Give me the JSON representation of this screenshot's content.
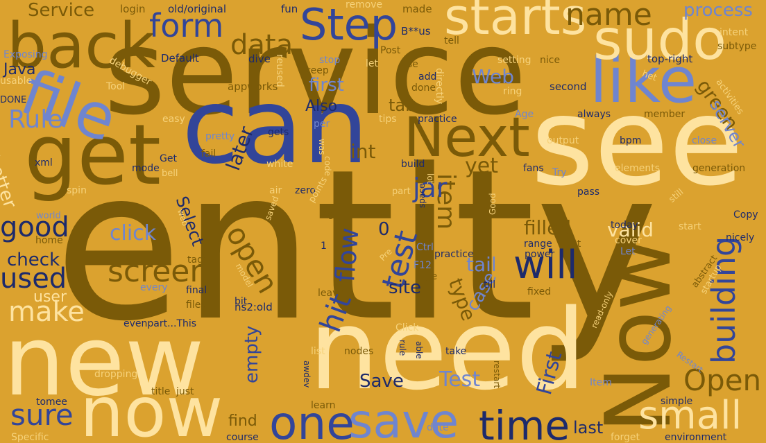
{
  "palette": {
    "background": "#dba22f",
    "brown": "#7a5a08",
    "cream": "#fee3a0",
    "royal_blue": "#324599",
    "periwinkle": "#6f85cf",
    "navy": "#1d2a6b",
    "pale_yellow": "#f6d27a"
  },
  "words": [
    {
      "text": "entity",
      "color": "brown"
    },
    {
      "text": "service",
      "color": "brown"
    },
    {
      "text": "can",
      "color": "royal_blue"
    },
    {
      "text": "see",
      "color": "cream"
    },
    {
      "text": "new",
      "color": "cream"
    },
    {
      "text": "need",
      "color": "cream"
    },
    {
      "text": "now",
      "color": "cream"
    },
    {
      "text": "get",
      "color": "brown"
    },
    {
      "text": "Now",
      "color": "brown"
    },
    {
      "text": "file",
      "color": "periwinkle"
    },
    {
      "text": "like",
      "color": "periwinkle"
    },
    {
      "text": "back",
      "color": "brown"
    },
    {
      "text": "sudo",
      "color": "cream"
    },
    {
      "text": "starts",
      "color": "cream"
    },
    {
      "text": "Next",
      "color": "brown"
    },
    {
      "text": "Step",
      "color": "royal_blue"
    },
    {
      "text": "name",
      "color": "brown"
    },
    {
      "text": "form",
      "color": "royal_blue"
    },
    {
      "text": "data",
      "color": "brown"
    },
    {
      "text": "save",
      "color": "periwinkle"
    },
    {
      "text": "one",
      "color": "royal_blue"
    },
    {
      "text": "time",
      "color": "navy"
    },
    {
      "text": "small",
      "color": "cream"
    },
    {
      "text": "will",
      "color": "navy"
    },
    {
      "text": "building",
      "color": "royal_blue"
    },
    {
      "text": "good",
      "color": "navy"
    },
    {
      "text": "used",
      "color": "navy"
    },
    {
      "text": "screen",
      "color": "brown"
    },
    {
      "text": "make",
      "color": "cream"
    },
    {
      "text": "sure",
      "color": "royal_blue"
    },
    {
      "text": "Open",
      "color": "brown"
    },
    {
      "text": "open",
      "color": "brown"
    },
    {
      "text": "test",
      "color": "royal_blue"
    },
    {
      "text": "flow",
      "color": "royal_blue"
    },
    {
      "text": "item",
      "color": "brown"
    },
    {
      "text": "hit",
      "color": "royal_blue"
    },
    {
      "text": "jar",
      "color": "royal_blue"
    },
    {
      "text": "Rule",
      "color": "periwinkle"
    },
    {
      "text": "process",
      "color": "periwinkle"
    },
    {
      "text": "Service",
      "color": "brown"
    },
    {
      "text": "green",
      "color": "brown"
    },
    {
      "text": "server",
      "color": "periwinkle"
    },
    {
      "text": "click",
      "color": "periwinkle"
    },
    {
      "text": "check",
      "color": "navy"
    },
    {
      "text": "Save",
      "color": "navy"
    },
    {
      "text": "Test",
      "color": "periwinkle"
    },
    {
      "text": "First",
      "color": "royal_blue"
    },
    {
      "text": "yet",
      "color": "brown"
    },
    {
      "text": "valid",
      "color": "cream"
    },
    {
      "text": "filled",
      "color": "brown"
    },
    {
      "text": "tail",
      "color": "periwinkle"
    },
    {
      "text": "type",
      "color": "brown"
    },
    {
      "text": "case",
      "color": "periwinkle"
    },
    {
      "text": "site",
      "color": "navy"
    },
    {
      "text": "empty",
      "color": "royal_blue"
    },
    {
      "text": "Web",
      "color": "periwinkle"
    },
    {
      "text": "first",
      "color": "periwinkle"
    },
    {
      "text": "tab",
      "color": "brown"
    },
    {
      "text": "int",
      "color": "brown"
    },
    {
      "text": "later",
      "color": "navy"
    },
    {
      "text": "Also",
      "color": "navy"
    },
    {
      "text": "Select",
      "color": "navy"
    },
    {
      "text": "better",
      "color": "cream"
    },
    {
      "text": "user",
      "color": "cream"
    },
    {
      "text": "Java",
      "color": "navy"
    },
    {
      "text": "last",
      "color": "navy"
    },
    {
      "text": "find",
      "color": "brown"
    },
    {
      "text": "Default",
      "color": "navy"
    },
    {
      "text": "appworks",
      "color": "brown"
    },
    {
      "text": "second",
      "color": "navy"
    },
    {
      "text": "top-right",
      "color": "navy"
    },
    {
      "text": "ns2:old",
      "color": "navy"
    },
    {
      "text": "old/original",
      "color": "navy"
    },
    {
      "text": "login",
      "color": "brown"
    },
    {
      "text": "fun",
      "color": "navy"
    },
    {
      "text": "remove",
      "color": "pale_yellow"
    },
    {
      "text": "made",
      "color": "brown"
    },
    {
      "text": "B**us",
      "color": "navy"
    },
    {
      "text": "tell",
      "color": "brown"
    },
    {
      "text": "Post",
      "color": "brown"
    },
    {
      "text": "Exposing",
      "color": "periwinkle"
    },
    {
      "text": "intent",
      "color": "pale_yellow"
    },
    {
      "text": "subtype",
      "color": "brown"
    },
    {
      "text": "usable",
      "color": "pale_yellow"
    },
    {
      "text": "DONE",
      "color": "navy"
    },
    {
      "text": "dive",
      "color": "navy"
    },
    {
      "text": "reused",
      "color": "pale_yellow"
    },
    {
      "text": "stop",
      "color": "periwinkle"
    },
    {
      "text": "keep",
      "color": "brown"
    },
    {
      "text": "let",
      "color": "pale_yellow"
    },
    {
      "text": "use",
      "color": "brown"
    },
    {
      "text": "add",
      "color": "navy"
    },
    {
      "text": "done",
      "color": "brown"
    },
    {
      "text": "directly",
      "color": "pale_yellow"
    },
    {
      "text": "ring",
      "color": "pale_yellow"
    },
    {
      "text": "setting",
      "color": "pale_yellow"
    },
    {
      "text": "nice",
      "color": "brown"
    },
    {
      "text": "het",
      "color": "pale_yellow"
    },
    {
      "text": "activities",
      "color": "pale_yellow"
    },
    {
      "text": "debugger",
      "color": "pale_yellow"
    },
    {
      "text": "Tool",
      "color": "pale_yellow"
    },
    {
      "text": "easy",
      "color": "pale_yellow"
    },
    {
      "text": "Age",
      "color": "periwinkle"
    },
    {
      "text": "always",
      "color": "navy"
    },
    {
      "text": "member",
      "color": "brown"
    },
    {
      "text": "practice",
      "color": "navy"
    },
    {
      "text": "tips",
      "color": "pale_yellow"
    },
    {
      "text": "per",
      "color": "periwinkle"
    },
    {
      "text": "pretty",
      "color": "periwinkle"
    },
    {
      "text": "gets",
      "color": "navy"
    },
    {
      "text": "output",
      "color": "pale_yellow"
    },
    {
      "text": "bpm",
      "color": "navy"
    },
    {
      "text": "close",
      "color": "periwinkle"
    },
    {
      "text": "xml",
      "color": "navy"
    },
    {
      "text": "mode",
      "color": "navy"
    },
    {
      "text": "Get",
      "color": "navy"
    },
    {
      "text": "fail",
      "color": "brown"
    },
    {
      "text": "white",
      "color": "pale_yellow"
    },
    {
      "text": "was",
      "color": "pale_yellow"
    },
    {
      "text": "code",
      "color": "pale_yellow"
    },
    {
      "text": "build",
      "color": "navy"
    },
    {
      "text": "Try",
      "color": "periwinkle"
    },
    {
      "text": "fans",
      "color": "navy"
    },
    {
      "text": "elements",
      "color": "pale_yellow"
    },
    {
      "text": "generation",
      "color": "brown"
    },
    {
      "text": "bell",
      "color": "pale_yellow"
    },
    {
      "text": "spin",
      "color": "pale_yellow"
    },
    {
      "text": "air",
      "color": "pale_yellow"
    },
    {
      "text": "zero",
      "color": "navy"
    },
    {
      "text": "part",
      "color": "pale_yellow"
    },
    {
      "text": "lot",
      "color": "pale_yellow"
    },
    {
      "text": "pass",
      "color": "navy"
    },
    {
      "text": "still",
      "color": "pale_yellow"
    },
    {
      "text": "world",
      "color": "periwinkle"
    },
    {
      "text": "points",
      "color": "pale_yellow"
    },
    {
      "text": "web",
      "color": "pale_yellow"
    },
    {
      "text": "log",
      "color": "brown"
    },
    {
      "text": "space",
      "color": "navy"
    },
    {
      "text": "Good",
      "color": "pale_yellow"
    },
    {
      "text": "today",
      "color": "navy"
    },
    {
      "text": "start",
      "color": "pale_yellow"
    },
    {
      "text": "Copy",
      "color": "navy"
    },
    {
      "text": "nicely",
      "color": "navy"
    },
    {
      "text": "home",
      "color": "brown"
    },
    {
      "text": "saved",
      "color": "pale_yellow"
    },
    {
      "text": "Pre",
      "color": "pale_yellow"
    },
    {
      "text": "Ctrl",
      "color": "periwinkle"
    },
    {
      "text": "practice",
      "color": "navy"
    },
    {
      "text": "range",
      "color": "navy"
    },
    {
      "text": "put",
      "color": "brown"
    },
    {
      "text": "cover",
      "color": "pale_yellow"
    },
    {
      "text": "power",
      "color": "navy"
    },
    {
      "text": "Let",
      "color": "periwinkle"
    },
    {
      "text": "abstract",
      "color": "brown"
    },
    {
      "text": "startup",
      "color": "pale_yellow"
    },
    {
      "text": "tags",
      "color": "brown"
    },
    {
      "text": "F12",
      "color": "periwinkle"
    },
    {
      "text": "age",
      "color": "brown"
    },
    {
      "text": "model",
      "color": "pale_yellow"
    },
    {
      "text": "every",
      "color": "periwinkle"
    },
    {
      "text": "final",
      "color": "navy"
    },
    {
      "text": "bit",
      "color": "navy"
    },
    {
      "text": "files",
      "color": "brown"
    },
    {
      "text": "leave",
      "color": "brown"
    },
    {
      "text": "till",
      "color": "navy"
    },
    {
      "text": "fixed",
      "color": "brown"
    },
    {
      "text": "generating",
      "color": "periwinkle"
    },
    {
      "text": "read-only",
      "color": "pale_yellow"
    },
    {
      "text": "evenpart...This",
      "color": "navy"
    },
    {
      "text": "Click",
      "color": "pale_yellow"
    },
    {
      "text": "able",
      "color": "navy"
    },
    {
      "text": "rule",
      "color": "navy"
    },
    {
      "text": "Restart",
      "color": "periwinkle"
    },
    {
      "text": "list",
      "color": "pale_yellow"
    },
    {
      "text": "nodes",
      "color": "brown"
    },
    {
      "text": "take",
      "color": "navy"
    },
    {
      "text": "awdev",
      "color": "navy"
    },
    {
      "text": "restart",
      "color": "brown"
    },
    {
      "text": "dropping",
      "color": "pale_yellow"
    },
    {
      "text": "title",
      "color": "brown"
    },
    {
      "text": "just",
      "color": "brown"
    },
    {
      "text": "Item",
      "color": "periwinkle"
    },
    {
      "text": "simple",
      "color": "navy"
    },
    {
      "text": "tomee",
      "color": "navy"
    },
    {
      "text": "learn",
      "color": "brown"
    },
    {
      "text": "date",
      "color": "periwinkle"
    },
    {
      "text": "course",
      "color": "navy"
    },
    {
      "text": "Specific",
      "color": "pale_yellow"
    },
    {
      "text": "forget",
      "color": "pale_yellow"
    },
    {
      "text": "environment",
      "color": "navy"
    },
    {
      "text": "1",
      "color": "navy"
    },
    {
      "text": "0",
      "color": "navy"
    }
  ]
}
